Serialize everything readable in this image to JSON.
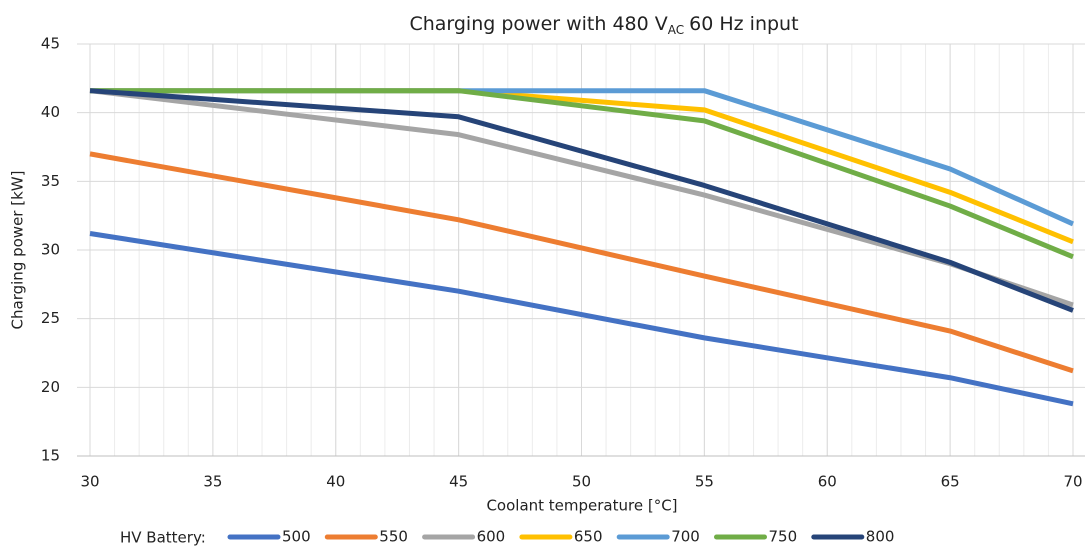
{
  "chart_data": {
    "type": "line",
    "title": [
      "Charging power with 480 V",
      "AC",
      "60 Hz input"
    ],
    "xlabel": "Coolant temperature [°C]",
    "ylabel": "Charging power [kW]",
    "legend_title": "HV Battery:",
    "legend": "bottom",
    "grid": true,
    "x_minor_step": 1,
    "x": [
      30,
      45,
      55,
      65,
      70
    ],
    "xlim": [
      30,
      70
    ],
    "xticks": [
      30,
      35,
      40,
      45,
      50,
      55,
      60,
      65,
      70
    ],
    "ylim": [
      15,
      45
    ],
    "yticks": [
      15,
      20,
      25,
      30,
      35,
      40,
      45
    ],
    "series": [
      {
        "name": "500",
        "color": "#4472c4",
        "values": [
          31.2,
          27.0,
          23.6,
          20.7,
          18.8
        ]
      },
      {
        "name": "550",
        "color": "#ed7d31",
        "values": [
          37.0,
          32.2,
          28.1,
          24.1,
          21.2
        ]
      },
      {
        "name": "600",
        "color": "#a5a5a5",
        "values": [
          41.6,
          38.4,
          34.0,
          29.0,
          26.0
        ]
      },
      {
        "name": "650",
        "color": "#ffc000",
        "values": [
          41.6,
          41.6,
          40.2,
          34.2,
          30.6
        ]
      },
      {
        "name": "700",
        "color": "#5b9bd5",
        "values": [
          41.6,
          41.6,
          41.6,
          35.9,
          31.9
        ]
      },
      {
        "name": "750",
        "color": "#70ad47",
        "values": [
          41.6,
          41.6,
          39.4,
          33.2,
          29.5
        ]
      },
      {
        "name": "800",
        "color": "#264478",
        "values": [
          41.6,
          39.7,
          34.7,
          29.1,
          25.6
        ]
      }
    ]
  }
}
